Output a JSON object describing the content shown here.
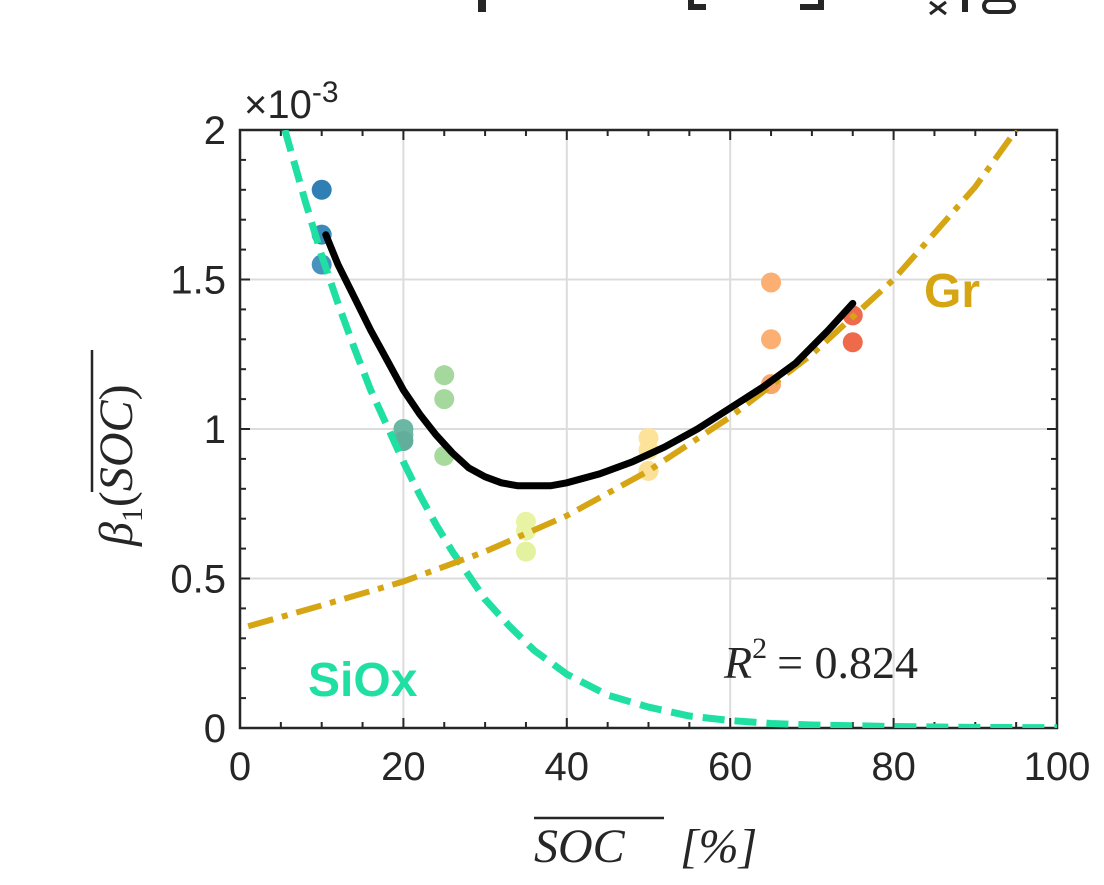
{
  "chart_data": {
    "type": "scatter",
    "xlabel": "SOC [%]",
    "xlabel_parts": {
      "var": "SOC",
      "unit": "[%]"
    },
    "ylabel_parts": {
      "beta": "β",
      "sub": "1",
      "var": "SOC"
    },
    "y_exponent": {
      "prefix": "×10",
      "power": "-3"
    },
    "xlim": [
      0,
      100
    ],
    "ylim": [
      0,
      2
    ],
    "x_ticks": [
      0,
      20,
      40,
      60,
      80,
      100
    ],
    "y_ticks": [
      0,
      0.5,
      1,
      1.5,
      2
    ],
    "x_tick_labels": [
      "0",
      "20",
      "40",
      "60",
      "80",
      "100"
    ],
    "y_tick_labels": [
      "0",
      "0.5",
      "1",
      "1.5",
      "2"
    ],
    "grid": true,
    "r2_annotation": {
      "lhs": "R",
      "power": "2",
      "rhs": "= 0.824"
    },
    "scatter_points": [
      {
        "x": 10,
        "y": 1.8,
        "color": "#2f7fb5"
      },
      {
        "x": 10,
        "y": 1.65,
        "color": "#3b8bba"
      },
      {
        "x": 10,
        "y": 1.55,
        "color": "#4892be"
      },
      {
        "x": 20,
        "y": 1.0,
        "color": "#6ab8a4"
      },
      {
        "x": 20,
        "y": 0.98,
        "color": "#6ab8a4"
      },
      {
        "x": 20,
        "y": 0.96,
        "color": "#62ad9b"
      },
      {
        "x": 25,
        "y": 1.18,
        "color": "#a4d89c"
      },
      {
        "x": 25,
        "y": 1.1,
        "color": "#a4d89c"
      },
      {
        "x": 25,
        "y": 0.91,
        "color": "#a8da9e"
      },
      {
        "x": 35,
        "y": 0.69,
        "color": "#e8f4a3"
      },
      {
        "x": 35,
        "y": 0.66,
        "color": "#e8f4a3"
      },
      {
        "x": 35,
        "y": 0.59,
        "color": "#e3f29e"
      },
      {
        "x": 50,
        "y": 0.97,
        "color": "#fde39a"
      },
      {
        "x": 50,
        "y": 0.93,
        "color": "#fde39a"
      },
      {
        "x": 50,
        "y": 0.86,
        "color": "#fde098"
      },
      {
        "x": 65,
        "y": 1.49,
        "color": "#fbaf72"
      },
      {
        "x": 65,
        "y": 1.3,
        "color": "#fbaf72"
      },
      {
        "x": 65,
        "y": 1.15,
        "color": "#f9a66a"
      },
      {
        "x": 75,
        "y": 1.38,
        "color": "#ef6a4a"
      },
      {
        "x": 75,
        "y": 1.29,
        "color": "#ef6a4a"
      }
    ],
    "fit_curve": {
      "color": "#000000",
      "x": [
        10.5,
        12,
        14,
        16,
        18,
        20,
        22,
        24,
        26,
        28,
        30,
        32,
        34,
        36,
        38,
        40,
        44,
        48,
        52,
        56,
        60,
        64,
        68,
        72,
        75
      ],
      "y": [
        1.65,
        1.55,
        1.44,
        1.33,
        1.23,
        1.13,
        1.05,
        0.98,
        0.92,
        0.87,
        0.84,
        0.82,
        0.81,
        0.81,
        0.81,
        0.82,
        0.85,
        0.89,
        0.94,
        1.0,
        1.07,
        1.14,
        1.22,
        1.33,
        1.42
      ]
    },
    "gr_curve": {
      "label": "Gr",
      "color": "#d6a514",
      "x": [
        1,
        10,
        20,
        30,
        40,
        50,
        60,
        70,
        80,
        90,
        95
      ],
      "y": [
        0.34,
        0.41,
        0.49,
        0.59,
        0.71,
        0.86,
        1.04,
        1.25,
        1.5,
        1.81,
        2.0
      ]
    },
    "siox_curve": {
      "label": "SiOx",
      "color": "#1fe0a2",
      "x": [
        5.5,
        8,
        10,
        12,
        14,
        16,
        18,
        20,
        22,
        24,
        26,
        28,
        30,
        33,
        36,
        40,
        45,
        50,
        55,
        60,
        65,
        70,
        80,
        90,
        100
      ],
      "y": [
        2.0,
        1.76,
        1.58,
        1.42,
        1.27,
        1.13,
        1.01,
        0.89,
        0.78,
        0.68,
        0.59,
        0.51,
        0.43,
        0.34,
        0.26,
        0.18,
        0.11,
        0.07,
        0.04,
        0.025,
        0.015,
        0.01,
        0.005,
        0.002,
        0.001
      ]
    }
  }
}
